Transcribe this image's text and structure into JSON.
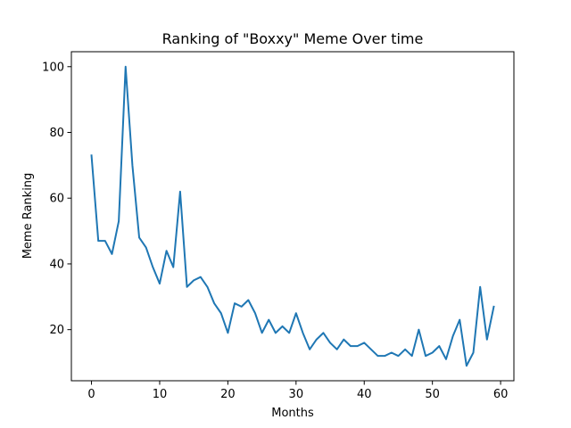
{
  "chart_data": {
    "type": "line",
    "title": "Ranking of \"Boxxy\" Meme Over time",
    "xlabel": "Months",
    "ylabel": "Meme Ranking",
    "xlim": [
      -2.95,
      61.95
    ],
    "ylim": [
      4.45,
      104.55
    ],
    "xticks": [
      0,
      10,
      20,
      30,
      40,
      50,
      60
    ],
    "yticks": [
      20,
      40,
      60,
      80,
      100
    ],
    "grid": false,
    "line_color": "#1f77b4",
    "series": [
      {
        "x": [
          0,
          1,
          2,
          3,
          4,
          5,
          6,
          7,
          8,
          9,
          10,
          11,
          12,
          13,
          14,
          15,
          16,
          17,
          18,
          19,
          20,
          21,
          22,
          23,
          24,
          25,
          26,
          27,
          28,
          29,
          30,
          31,
          32,
          33,
          34,
          35,
          36,
          37,
          38,
          39,
          40,
          41,
          42,
          43,
          44,
          45,
          46,
          47,
          48,
          49,
          50,
          51,
          52,
          53,
          54,
          55,
          56,
          57,
          58,
          59
        ],
        "values": [
          73,
          47,
          47,
          43,
          53,
          100,
          70,
          48,
          45,
          39,
          34,
          44,
          39,
          62,
          33,
          35,
          36,
          33,
          28,
          25,
          19,
          28,
          27,
          29,
          25,
          19,
          23,
          19,
          21,
          19,
          25,
          19,
          14,
          17,
          19,
          16,
          14,
          17,
          15,
          15,
          16,
          14,
          12,
          12,
          13,
          12,
          14,
          12,
          20,
          12,
          13,
          15,
          11,
          18,
          23,
          9,
          13,
          33,
          17,
          27
        ]
      }
    ]
  }
}
